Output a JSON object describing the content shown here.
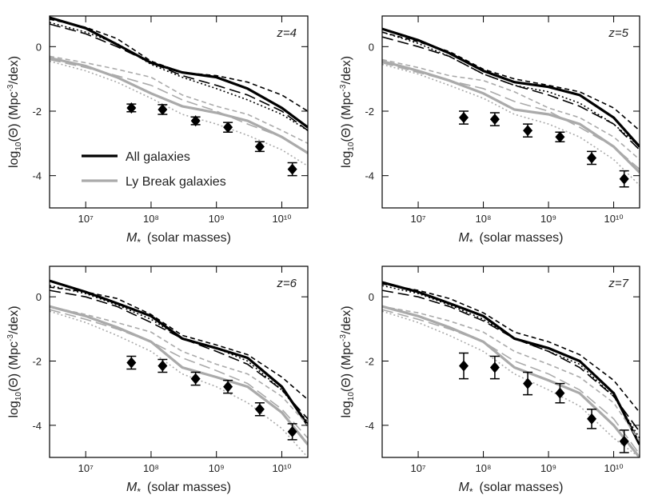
{
  "chart_data": [
    {
      "type": "line",
      "annotation": "z=4",
      "xscale": "log",
      "legend": "center left",
      "xlabel": [
        "M",
        "*",
        "(solar masses)"
      ],
      "ylabel": [
        "log",
        "10",
        "(Θ)  (Mpc",
        "-3",
        "/dex)"
      ],
      "xlim": [
        2800000,
        25000000000
      ],
      "ylim": [
        -5,
        0.95
      ],
      "xticks": [
        {
          "value": 10000000,
          "label": "10⁷"
        },
        {
          "value": 100000000,
          "label": "10⁸"
        },
        {
          "value": 1000000000,
          "label": "10⁹"
        },
        {
          "value": 10000000000,
          "label": "10¹⁰"
        }
      ],
      "yticks": [
        -4,
        -2,
        0
      ],
      "x": [
        2800000,
        10000000,
        30000000,
        100000000,
        300000000,
        1000000000,
        3000000000,
        10000000000,
        25000000000
      ],
      "series": [
        {
          "name": "All galaxies",
          "color": "#000000",
          "style": "solid",
          "values": [
            0.9,
            0.57,
            0.07,
            -0.5,
            -0.8,
            -0.95,
            -1.3,
            -1.9,
            -2.5
          ]
        },
        {
          "color": "#000000",
          "style": "dashed",
          "values": [
            0.85,
            0.6,
            0.25,
            -0.45,
            -0.8,
            -0.9,
            -1.1,
            -1.5,
            -2.0
          ]
        },
        {
          "color": "#000000",
          "style": "longdash",
          "values": [
            0.7,
            0.4,
            0.0,
            -0.5,
            -0.9,
            -1.2,
            -1.5,
            -2.0,
            -2.6
          ]
        },
        {
          "color": "#000000",
          "style": "dotted",
          "values": [
            0.75,
            0.45,
            0.1,
            -0.55,
            -0.95,
            -1.3,
            -1.65,
            -2.1,
            -2.6
          ]
        },
        {
          "name": "Ly Break galaxies",
          "color": "#aaaaaa",
          "style": "solid",
          "values": [
            -0.35,
            -0.6,
            -0.95,
            -1.45,
            -1.85,
            -2.05,
            -2.3,
            -2.8,
            -3.3
          ]
        },
        {
          "color": "#aaaaaa",
          "style": "dashed",
          "values": [
            -0.3,
            -0.5,
            -0.7,
            -0.95,
            -1.5,
            -1.85,
            -2.1,
            -2.6,
            -3.0
          ]
        },
        {
          "color": "#aaaaaa",
          "style": "longdash",
          "values": [
            -0.4,
            -0.65,
            -0.9,
            -1.2,
            -1.65,
            -2.0,
            -2.4,
            -2.8,
            -3.3
          ]
        },
        {
          "color": "#aaaaaa",
          "style": "dotted",
          "values": [
            -0.45,
            -0.75,
            -1.1,
            -1.6,
            -2.1,
            -2.4,
            -2.75,
            -3.2,
            -3.7
          ]
        }
      ],
      "markers": {
        "color": "#000000",
        "x": [
          50000000,
          150000000,
          480000000,
          1500000000,
          4600000000,
          14500000000
        ],
        "values": [
          -1.9,
          -1.95,
          -2.3,
          -2.5,
          -3.1,
          -3.8
        ],
        "errors": [
          0.12,
          0.15,
          0.12,
          0.15,
          0.15,
          0.2
        ]
      }
    },
    {
      "type": "line",
      "annotation": "z=5",
      "xscale": "log",
      "xlabel": [
        "M",
        "*",
        "(solar masses)"
      ],
      "ylabel": [
        "log",
        "10",
        "(Θ)  (Mpc",
        "-3",
        "/dex)"
      ],
      "xlim": [
        2800000,
        25000000000
      ],
      "ylim": [
        -5,
        0.95
      ],
      "xticks": [
        {
          "value": 10000000,
          "label": "10⁷"
        },
        {
          "value": 100000000,
          "label": "10⁸"
        },
        {
          "value": 1000000000,
          "label": "10⁹"
        },
        {
          "value": 10000000000,
          "label": "10¹⁰"
        }
      ],
      "yticks": [
        -4,
        -2,
        0
      ],
      "x": [
        2800000,
        10000000,
        30000000,
        100000000,
        300000000,
        1000000000,
        3000000000,
        10000000000,
        25000000000
      ],
      "series": [
        {
          "color": "#000000",
          "style": "solid",
          "values": [
            0.55,
            0.2,
            -0.2,
            -0.75,
            -1.1,
            -1.25,
            -1.5,
            -2.2,
            -3.1
          ]
        },
        {
          "color": "#000000",
          "style": "dashed",
          "values": [
            0.45,
            0.15,
            -0.15,
            -0.7,
            -1.0,
            -1.2,
            -1.4,
            -1.9,
            -2.6
          ]
        },
        {
          "color": "#000000",
          "style": "longdash",
          "values": [
            0.3,
            0.0,
            -0.3,
            -0.85,
            -1.2,
            -1.5,
            -1.85,
            -2.4,
            -3.2
          ]
        },
        {
          "color": "#000000",
          "style": "dotted",
          "values": [
            0.45,
            0.1,
            -0.3,
            -0.85,
            -1.2,
            -1.4,
            -1.75,
            -2.4,
            -3.1
          ]
        },
        {
          "color": "#aaaaaa",
          "style": "solid",
          "values": [
            -0.45,
            -0.75,
            -1.05,
            -1.45,
            -1.95,
            -2.1,
            -2.4,
            -3.1,
            -3.9
          ]
        },
        {
          "color": "#aaaaaa",
          "style": "dashed",
          "values": [
            -0.4,
            -0.65,
            -0.9,
            -1.05,
            -1.4,
            -1.9,
            -2.2,
            -2.8,
            -3.5
          ]
        },
        {
          "color": "#aaaaaa",
          "style": "longdash",
          "values": [
            -0.5,
            -0.8,
            -1.05,
            -1.3,
            -1.7,
            -2.0,
            -2.5,
            -3.1,
            -3.8
          ]
        },
        {
          "color": "#aaaaaa",
          "style": "dotted",
          "values": [
            -0.55,
            -0.85,
            -1.2,
            -1.6,
            -2.1,
            -2.4,
            -2.8,
            -3.5,
            -4.3
          ]
        }
      ],
      "markers": {
        "color": "#000000",
        "x": [
          50000000,
          150000000,
          480000000,
          1500000000,
          4600000000,
          14500000000
        ],
        "values": [
          -2.2,
          -2.25,
          -2.6,
          -2.8,
          -3.45,
          -4.1
        ],
        "errors": [
          0.2,
          0.2,
          0.2,
          0.15,
          0.2,
          0.25
        ]
      }
    },
    {
      "type": "line",
      "annotation": "z=6",
      "xscale": "log",
      "xlabel": [
        "M",
        "*",
        "(solar masses)"
      ],
      "ylabel": [
        "log",
        "10",
        "(Θ)  (Mpc",
        "-3",
        "/dex)"
      ],
      "xlim": [
        2800000,
        25000000000
      ],
      "ylim": [
        -5,
        0.95
      ],
      "xticks": [
        {
          "value": 10000000,
          "label": "10⁷"
        },
        {
          "value": 100000000,
          "label": "10⁸"
        },
        {
          "value": 1000000000,
          "label": "10⁹"
        },
        {
          "value": 10000000000,
          "label": "10¹⁰"
        }
      ],
      "yticks": [
        -4,
        -2,
        0
      ],
      "x": [
        2800000,
        10000000,
        30000000,
        100000000,
        300000000,
        1000000000,
        3000000000,
        10000000000,
        25000000000
      ],
      "series": [
        {
          "color": "#000000",
          "style": "solid",
          "values": [
            0.5,
            0.15,
            -0.2,
            -0.6,
            -1.3,
            -1.6,
            -1.9,
            -2.8,
            -4.0
          ]
        },
        {
          "color": "#000000",
          "style": "dashed",
          "values": [
            0.3,
            0.15,
            -0.05,
            -0.55,
            -1.2,
            -1.5,
            -1.8,
            -2.5,
            -3.2
          ]
        },
        {
          "color": "#000000",
          "style": "longdash",
          "values": [
            0.2,
            0.0,
            -0.3,
            -0.8,
            -1.3,
            -1.7,
            -2.1,
            -2.9,
            -3.8
          ]
        },
        {
          "color": "#000000",
          "style": "dotted",
          "values": [
            0.35,
            0.1,
            -0.25,
            -0.7,
            -1.3,
            -1.6,
            -2.0,
            -2.9,
            -3.9
          ]
        },
        {
          "color": "#aaaaaa",
          "style": "solid",
          "values": [
            -0.3,
            -0.6,
            -0.95,
            -1.4,
            -2.2,
            -2.5,
            -2.8,
            -3.6,
            -4.6
          ]
        },
        {
          "color": "#aaaaaa",
          "style": "dashed",
          "values": [
            -0.3,
            -0.55,
            -0.8,
            -1.1,
            -1.7,
            -2.1,
            -2.4,
            -3.1,
            -4.0
          ]
        },
        {
          "color": "#aaaaaa",
          "style": "longdash",
          "values": [
            -0.4,
            -0.7,
            -1.0,
            -1.4,
            -1.9,
            -2.3,
            -2.7,
            -3.5,
            -4.4
          ]
        },
        {
          "color": "#aaaaaa",
          "style": "dotted",
          "values": [
            -0.45,
            -0.8,
            -1.2,
            -1.7,
            -2.4,
            -2.8,
            -3.3,
            -4.1,
            -5.0
          ]
        }
      ],
      "markers": {
        "color": "#000000",
        "x": [
          50000000,
          150000000,
          480000000,
          1500000000,
          4600000000,
          14500000000
        ],
        "values": [
          -2.05,
          -2.15,
          -2.55,
          -2.8,
          -3.5,
          -4.2
        ],
        "errors": [
          0.2,
          0.2,
          0.2,
          0.2,
          0.2,
          0.25
        ]
      }
    },
    {
      "type": "line",
      "annotation": "z=7",
      "xscale": "log",
      "xlabel": [
        "M",
        "*",
        "(solar masses)"
      ],
      "ylabel": [
        "log",
        "10",
        "(Θ)  (Mpc",
        "-3",
        "/dex)"
      ],
      "xlim": [
        2800000,
        25000000000
      ],
      "ylim": [
        -5,
        0.95
      ],
      "xticks": [
        {
          "value": 10000000,
          "label": "10⁷"
        },
        {
          "value": 100000000,
          "label": "10⁸"
        },
        {
          "value": 1000000000,
          "label": "10⁹"
        },
        {
          "value": 10000000000,
          "label": "10¹⁰"
        }
      ],
      "yticks": [
        -4,
        -2,
        0
      ],
      "x": [
        2800000,
        10000000,
        30000000,
        100000000,
        300000000,
        1000000000,
        3000000000,
        10000000000,
        25000000000
      ],
      "series": [
        {
          "color": "#000000",
          "style": "solid",
          "values": [
            0.45,
            0.15,
            -0.2,
            -0.6,
            -1.3,
            -1.6,
            -2.0,
            -3.0,
            -4.6
          ]
        },
        {
          "color": "#000000",
          "style": "dashed",
          "values": [
            0.4,
            0.2,
            -0.05,
            -0.5,
            -1.1,
            -1.4,
            -1.8,
            -2.6,
            -3.6
          ]
        },
        {
          "color": "#000000",
          "style": "longdash",
          "values": [
            0.2,
            0.0,
            -0.3,
            -0.75,
            -1.3,
            -1.7,
            -2.2,
            -3.1,
            -4.2
          ]
        },
        {
          "color": "#000000",
          "style": "dotted",
          "values": [
            0.35,
            0.1,
            -0.25,
            -0.7,
            -1.3,
            -1.7,
            -2.1,
            -3.1,
            -4.4
          ]
        },
        {
          "color": "#aaaaaa",
          "style": "solid",
          "values": [
            -0.3,
            -0.6,
            -0.95,
            -1.4,
            -2.2,
            -2.6,
            -3.0,
            -4.0,
            -5.0
          ]
        },
        {
          "color": "#aaaaaa",
          "style": "dashed",
          "values": [
            -0.3,
            -0.5,
            -0.75,
            -1.1,
            -1.7,
            -2.1,
            -2.5,
            -3.3,
            -4.5
          ]
        },
        {
          "color": "#aaaaaa",
          "style": "longdash",
          "values": [
            -0.4,
            -0.7,
            -1.0,
            -1.4,
            -2.0,
            -2.4,
            -2.9,
            -3.8,
            -4.9
          ]
        },
        {
          "color": "#aaaaaa",
          "style": "dotted",
          "values": [
            -0.45,
            -0.8,
            -1.2,
            -1.7,
            -2.4,
            -2.9,
            -3.4,
            -4.4,
            -5.0
          ]
        }
      ],
      "markers": {
        "color": "#000000",
        "x": [
          50000000,
          150000000,
          480000000,
          1500000000,
          4600000000,
          14500000000
        ],
        "values": [
          -2.15,
          -2.2,
          -2.7,
          -3.0,
          -3.8,
          -4.5
        ],
        "errors": [
          0.4,
          0.35,
          0.35,
          0.3,
          0.3,
          0.35
        ]
      }
    }
  ]
}
